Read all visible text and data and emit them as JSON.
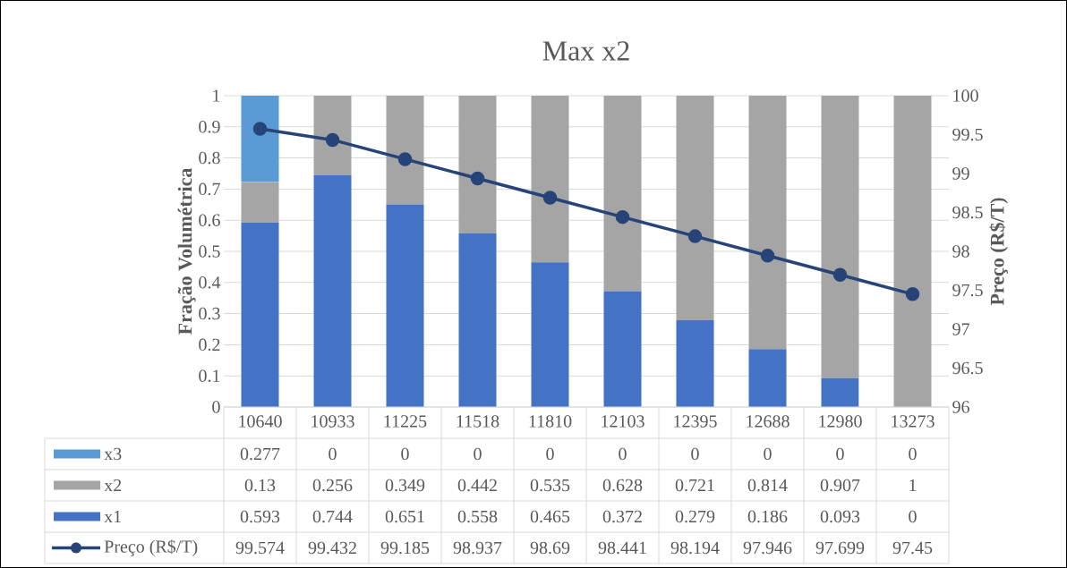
{
  "chart_data": {
    "type": "bar",
    "title": "Max x2",
    "ylabel": "Fração Volumétrica",
    "y2label": "Preço (R$/T)",
    "categories": [
      "10640",
      "10933",
      "11225",
      "11518",
      "11810",
      "12103",
      "12395",
      "12688",
      "12980",
      "13273"
    ],
    "series": [
      {
        "name": "x1",
        "color": "#4472c4",
        "values": [
          0.593,
          0.744,
          0.651,
          0.558,
          0.465,
          0.372,
          0.279,
          0.186,
          0.093,
          0
        ]
      },
      {
        "name": "x2",
        "color": "#a5a5a5",
        "values": [
          0.13,
          0.256,
          0.349,
          0.442,
          0.535,
          0.628,
          0.721,
          0.814,
          0.907,
          1
        ]
      },
      {
        "name": "x3",
        "color": "#5b9bd5",
        "values": [
          0.277,
          0,
          0,
          0,
          0,
          0,
          0,
          0,
          0,
          0
        ]
      },
      {
        "name": "Preço (R$/T)",
        "type": "line",
        "axis": "y2",
        "color": "#264478",
        "values": [
          99.574,
          99.432,
          99.185,
          98.937,
          98.69,
          98.441,
          98.194,
          97.946,
          97.699,
          97.45
        ]
      }
    ],
    "stacked": true,
    "ylim": [
      0,
      1
    ],
    "yticks": [
      0,
      0.1,
      0.2,
      0.3,
      0.4,
      0.5,
      0.6,
      0.7,
      0.8,
      0.9,
      1
    ],
    "y2lim": [
      96,
      100
    ],
    "y2ticks": [
      96,
      96.5,
      97,
      97.5,
      98,
      98.5,
      99,
      99.5,
      100
    ],
    "grid": "y",
    "legend": "bottom",
    "data_labels": true,
    "marker": "circle",
    "line_style": "solid"
  }
}
